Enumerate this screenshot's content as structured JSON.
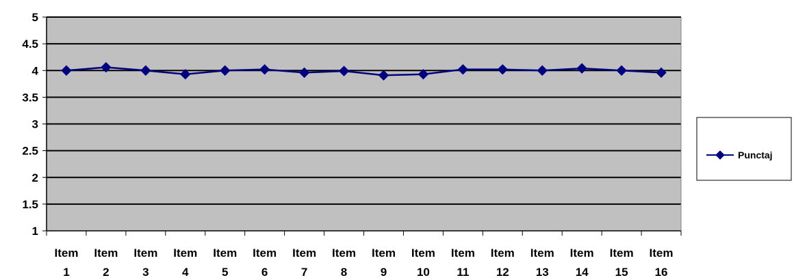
{
  "chart_data": {
    "type": "line",
    "title": "",
    "xlabel": "",
    "ylabel": "",
    "categories": [
      [
        "Item",
        "1"
      ],
      [
        "Item",
        "2"
      ],
      [
        "Item",
        "3"
      ],
      [
        "Item",
        "4"
      ],
      [
        "Item",
        "5"
      ],
      [
        "Item",
        "6"
      ],
      [
        "Item",
        "7"
      ],
      [
        "Item",
        "8"
      ],
      [
        "Item",
        "9"
      ],
      [
        "Item",
        "10"
      ],
      [
        "Item",
        "11"
      ],
      [
        "Item",
        "12"
      ],
      [
        "Item",
        "13"
      ],
      [
        "Item",
        "14"
      ],
      [
        "Item",
        "15"
      ],
      [
        "Item",
        "16"
      ]
    ],
    "series": [
      {
        "name": "Punctaj",
        "values": [
          4.0,
          4.06,
          4.0,
          3.93,
          4.0,
          4.02,
          3.96,
          3.99,
          3.91,
          3.93,
          4.02,
          4.02,
          4.0,
          4.04,
          4.0,
          3.96
        ]
      }
    ],
    "ylim": [
      1,
      5
    ],
    "yticks": [
      "1",
      "1.5",
      "2",
      "2.5",
      "3",
      "3.5",
      "4",
      "4.5",
      "5"
    ],
    "grid": true,
    "legend_position": "right",
    "colors": {
      "plot_background": "#c0c0c0",
      "gridline": "#000000",
      "series_line": "#000080",
      "marker": "#000080"
    }
  }
}
